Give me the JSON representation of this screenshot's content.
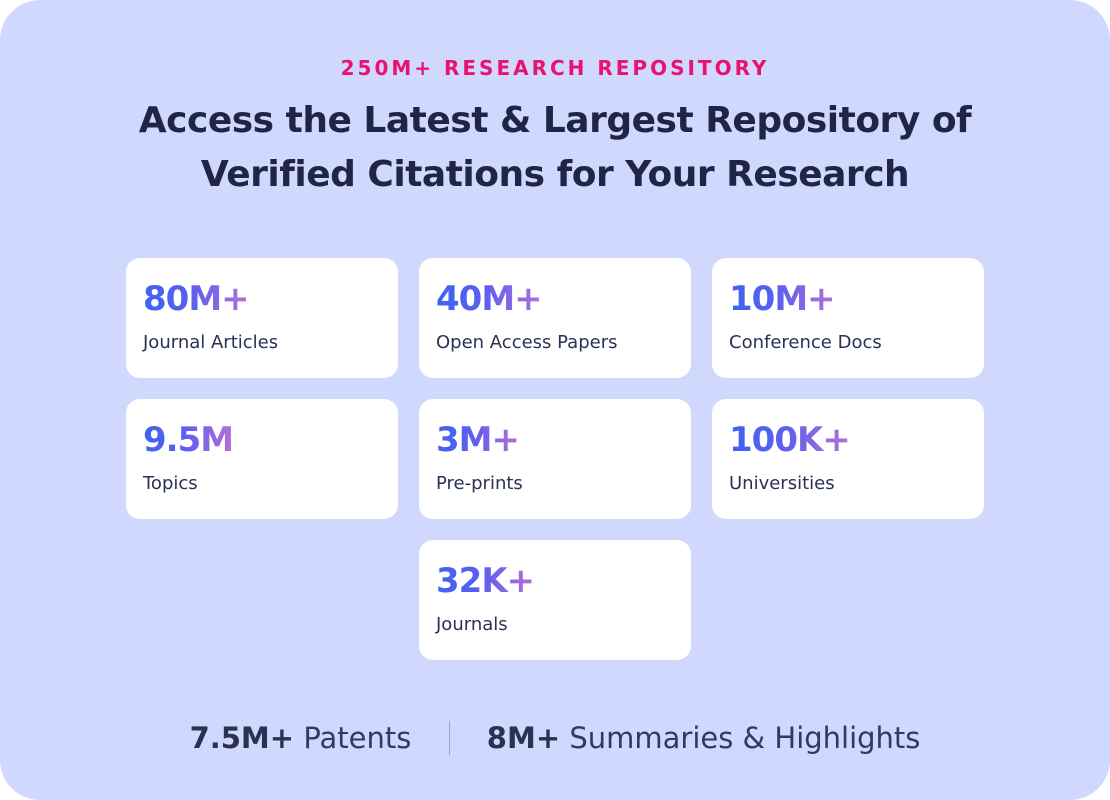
{
  "eyebrow": "250M+ RESEARCH REPOSITORY",
  "headline": {
    "line1": "Access the Latest & Largest Repository of",
    "line2": "Verified Citations for Your Research"
  },
  "stats": [
    {
      "value": "80M+",
      "label": "Journal Articles"
    },
    {
      "value": "40M+",
      "label": "Open Access Papers"
    },
    {
      "value": "10M+",
      "label": "Conference Docs"
    },
    {
      "value": "9.5M",
      "label": "Topics"
    },
    {
      "value": "3M+",
      "label": "Pre-prints"
    },
    {
      "value": "100K+",
      "label": "Universities"
    },
    {
      "value": "32K+",
      "label": "Journals"
    }
  ],
  "footer": {
    "patents_value": "7.5M+",
    "patents_label": "Patents",
    "summaries_value": "8M+",
    "summaries_label": "Summaries & Highlights"
  },
  "colors": {
    "background": "#d1d8fd",
    "eyebrow": "#e8136f",
    "headline": "#1e2548",
    "card": "#ffffff",
    "number_gradient_start": "#3f63f0",
    "number_gradient_end": "#b56fd6"
  }
}
